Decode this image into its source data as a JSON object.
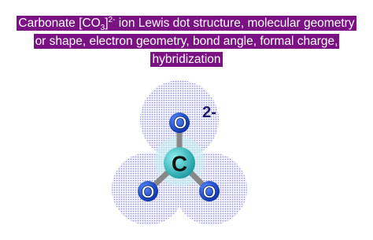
{
  "title": {
    "line1": {
      "before": "Carbonate [CO",
      "subscript": "3",
      "bracket": "]",
      "superscript": "2-",
      "after": " ion Lewis dot structure, molecular geometry"
    },
    "line2": "or shape, electron geometry, bond angle, formal charge,",
    "line3": "hybridization"
  },
  "molecule": {
    "atoms": [
      "O",
      "O",
      "O",
      "C"
    ],
    "charge": "2-"
  }
}
